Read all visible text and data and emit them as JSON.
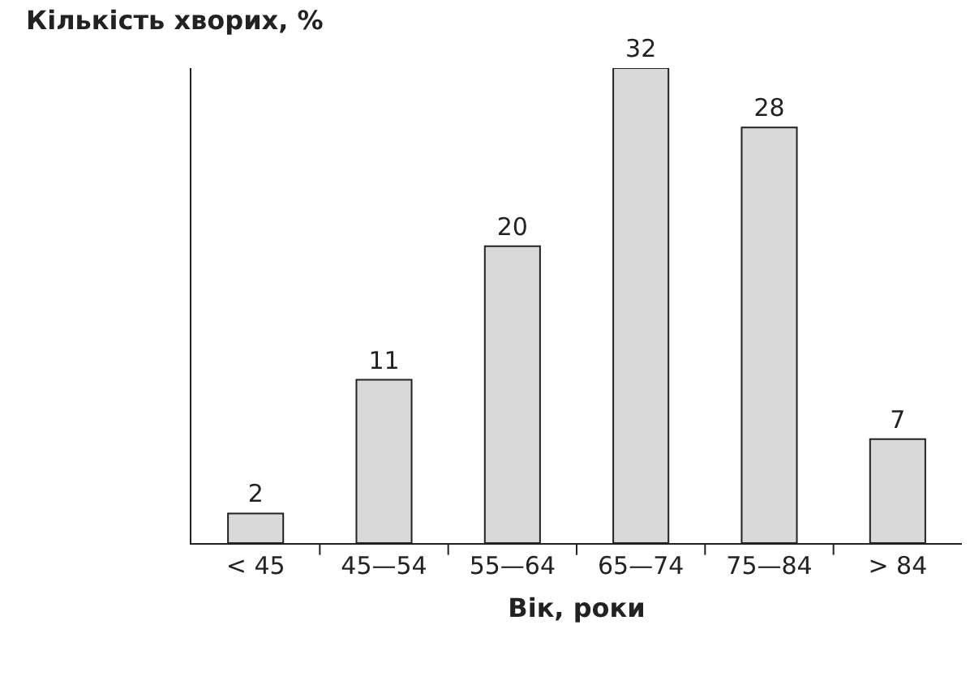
{
  "chart_data": {
    "type": "bar",
    "xlabel": "Вік, роки",
    "ylabel": "Кількість хворих, %",
    "categories": [
      "< 45",
      "45—54",
      "55—64",
      "65—74",
      "75—84",
      "> 84"
    ],
    "values": [
      2,
      11,
      20,
      32,
      28,
      7
    ],
    "color": "#d9d9d9",
    "ylim": [
      0,
      32
    ],
    "data_labels": true,
    "grid": false,
    "legend": false
  }
}
